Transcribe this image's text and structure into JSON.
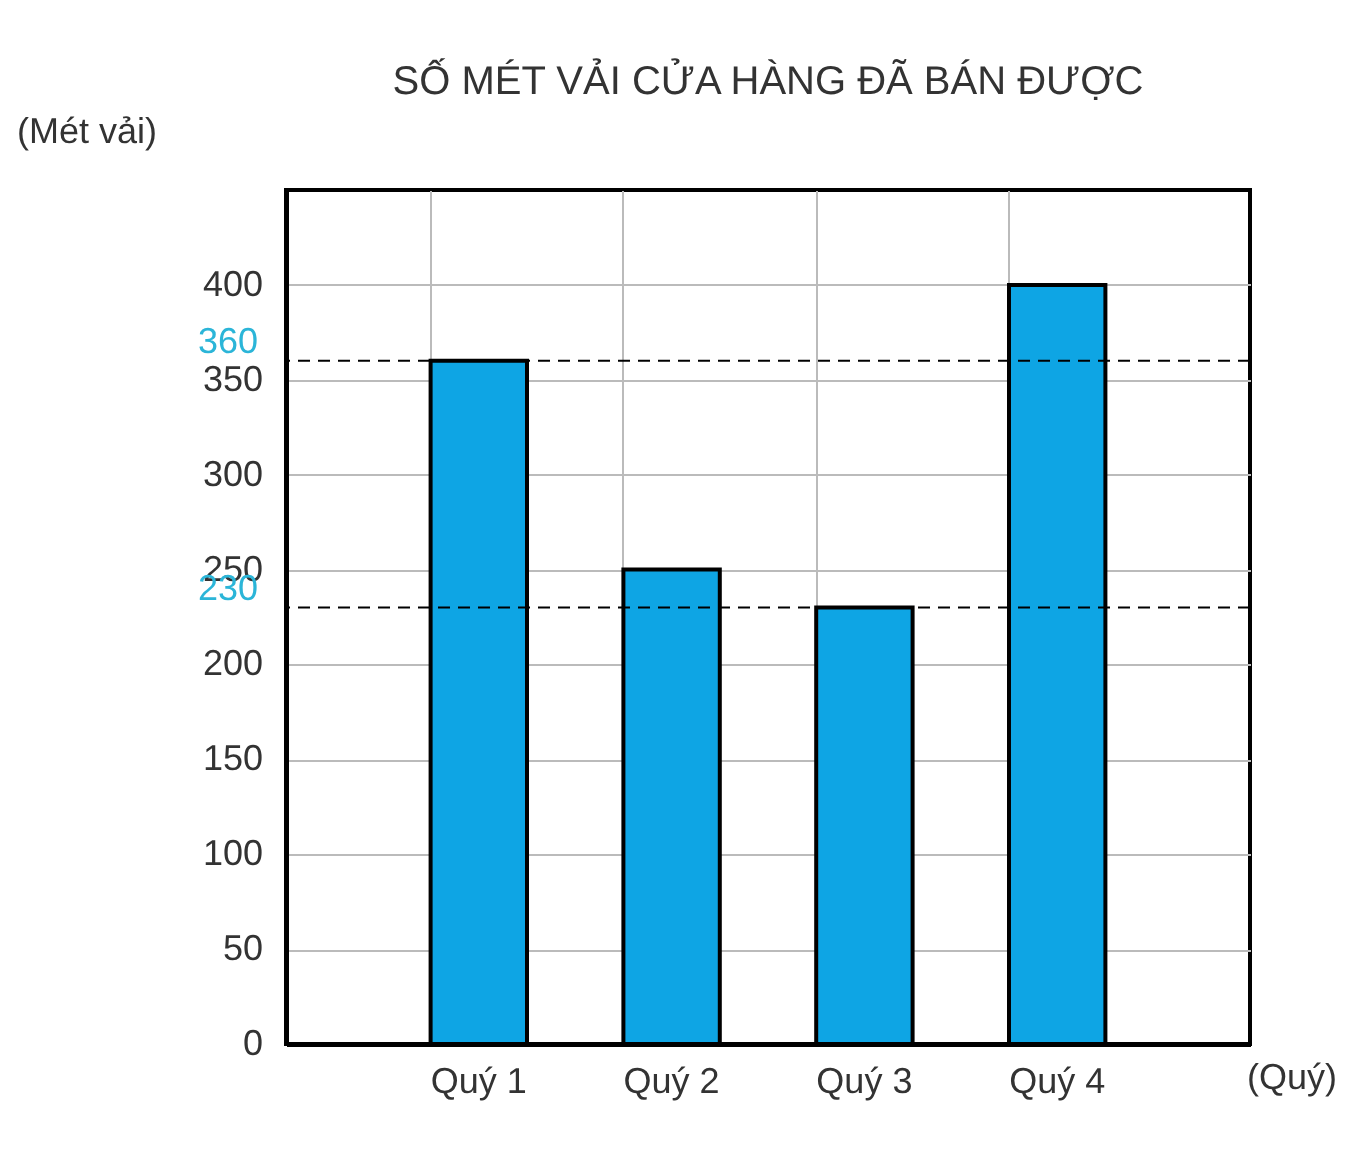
{
  "chart_data": {
    "type": "bar",
    "title": "SỐ MÉT VẢI CỬA HÀNG ĐÃ BÁN ĐƯỢC",
    "ylabel": "(Mét vải)",
    "xlabel": "(Quý)",
    "categories": [
      "Quý 1",
      "Quý 2",
      "Quý 3",
      "Quý 4"
    ],
    "values": [
      360,
      250,
      230,
      400
    ],
    "color": "#0ea5e4",
    "ylim": [
      0,
      450
    ],
    "yticks": [
      0,
      50,
      100,
      150,
      200,
      250,
      300,
      350,
      400
    ],
    "grid": true,
    "ref_lines": [
      {
        "axis": "y",
        "value": 360,
        "label": "360",
        "line_style": "dashed"
      },
      {
        "axis": "y",
        "value": 230,
        "label": "230",
        "line_style": "dashed"
      }
    ]
  }
}
